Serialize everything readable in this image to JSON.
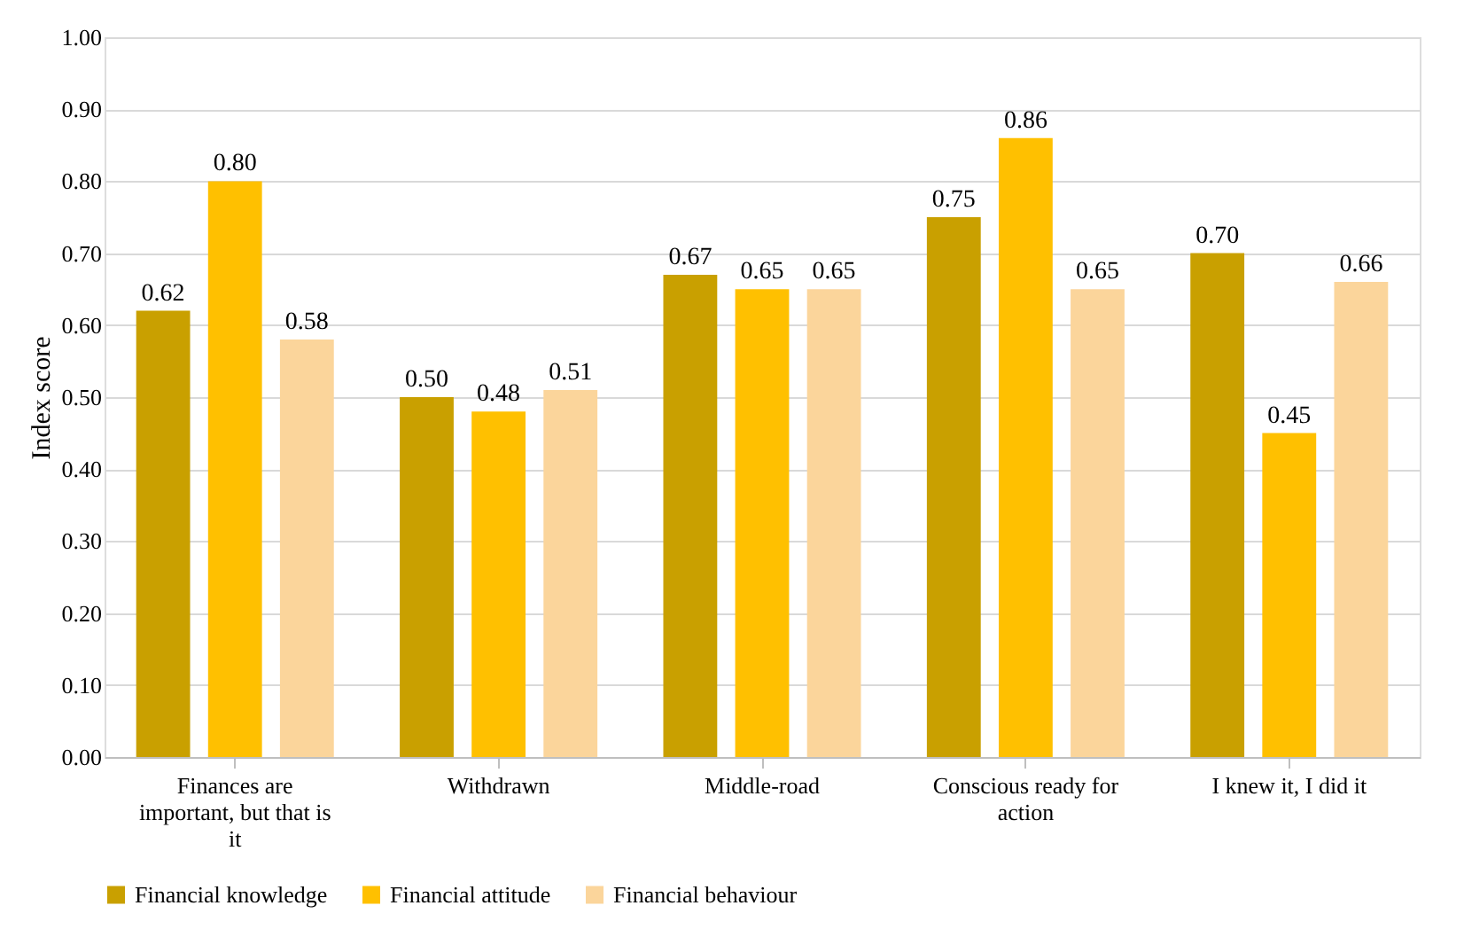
{
  "chart_data": {
    "type": "bar",
    "ylabel": "Index score",
    "categories": [
      "Finances are important, but that is it",
      "Withdrawn",
      "Middle-road",
      "Conscious ready for action",
      "I knew it, I did it"
    ],
    "series": [
      {
        "name": "Financial knowledge",
        "color": "#c9a000",
        "values": [
          0.62,
          0.5,
          0.67,
          0.75,
          0.7
        ],
        "value_labels": [
          "0.62",
          "0.50",
          "0.67",
          "0.75",
          "0.70"
        ]
      },
      {
        "name": "Financial attitude",
        "color": "#ffc000",
        "values": [
          0.8,
          0.48,
          0.65,
          0.86,
          0.45
        ],
        "value_labels": [
          "0.80",
          "0.48",
          "0.65",
          "0.86",
          "0.45"
        ]
      },
      {
        "name": "Financial behaviour",
        "color": "#fbd59b",
        "values": [
          0.58,
          0.51,
          0.65,
          0.65,
          0.66
        ],
        "value_labels": [
          "0.58",
          "0.51",
          "0.65",
          "0.65",
          "0.66"
        ]
      }
    ],
    "ylim": [
      0,
      1
    ],
    "yticks": [
      {
        "value": 0,
        "label": "0.00"
      },
      {
        "value": 0.1,
        "label": "0.10"
      },
      {
        "value": 0.2,
        "label": "0.20"
      },
      {
        "value": 0.3,
        "label": "0.30"
      },
      {
        "value": 0.4,
        "label": "0.40"
      },
      {
        "value": 0.5,
        "label": "0.50"
      },
      {
        "value": 0.6,
        "label": "0.60"
      },
      {
        "value": 0.7,
        "label": "0.70"
      },
      {
        "value": 0.8,
        "label": "0.80"
      },
      {
        "value": 0.9,
        "label": "0.90"
      },
      {
        "value": 1,
        "label": "1.00"
      }
    ],
    "grid": "y",
    "legend": "bottom"
  }
}
